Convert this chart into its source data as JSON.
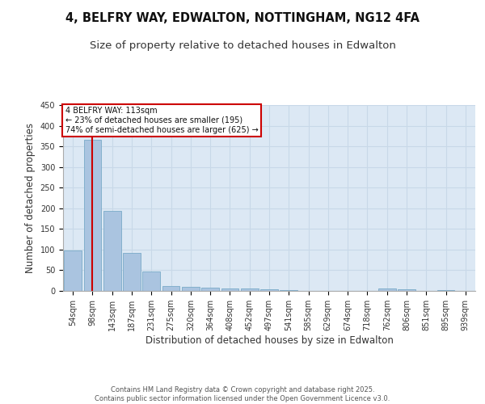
{
  "title_line1": "4, BELFRY WAY, EDWALTON, NOTTINGHAM, NG12 4FA",
  "title_line2": "Size of property relative to detached houses in Edwalton",
  "xlabel": "Distribution of detached houses by size in Edwalton",
  "ylabel": "Number of detached properties",
  "categories": [
    "54sqm",
    "98sqm",
    "143sqm",
    "187sqm",
    "231sqm",
    "275sqm",
    "320sqm",
    "364sqm",
    "408sqm",
    "452sqm",
    "497sqm",
    "541sqm",
    "585sqm",
    "629sqm",
    "674sqm",
    "718sqm",
    "762sqm",
    "806sqm",
    "851sqm",
    "895sqm",
    "939sqm"
  ],
  "values": [
    97,
    365,
    193,
    91,
    46,
    11,
    10,
    8,
    6,
    5,
    3,
    1,
    0,
    0,
    0,
    0,
    5,
    4,
    0,
    2,
    0
  ],
  "bar_color": "#aac4e0",
  "bar_edgecolor": "#7aaac8",
  "grid_color": "#c8d8e8",
  "background_color": "#dce8f4",
  "annotation_text": "4 BELFRY WAY: 113sqm\n← 23% of detached houses are smaller (195)\n74% of semi-detached houses are larger (625) →",
  "annotation_box_color": "#ffffff",
  "annotation_box_edgecolor": "#cc0000",
  "vline_x": 1,
  "vline_color": "#cc0000",
  "ylim": [
    0,
    450
  ],
  "yticks": [
    0,
    50,
    100,
    150,
    200,
    250,
    300,
    350,
    400,
    450
  ],
  "footer_text": "Contains HM Land Registry data © Crown copyright and database right 2025.\nContains public sector information licensed under the Open Government Licence v3.0.",
  "title_fontsize": 10.5,
  "subtitle_fontsize": 9.5,
  "tick_fontsize": 7,
  "label_fontsize": 8.5,
  "footer_fontsize": 6
}
